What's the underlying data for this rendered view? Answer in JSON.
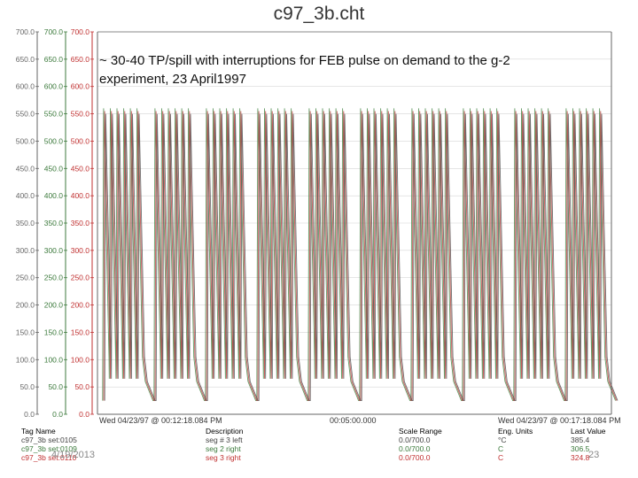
{
  "chart_data": {
    "type": "line",
    "title": "c97_3b.cht",
    "annotation": "~ 30-40 TP/spill with interruptions for FEB pulse on demand to the g-2 experiment, 23 April1997",
    "ylim": [
      0,
      700
    ],
    "y_ticks": [
      "0.0",
      "50.0",
      "100.0",
      "150.0",
      "200.0",
      "250.0",
      "300.0",
      "350.0",
      "400.0",
      "450.0",
      "500.0",
      "550.0",
      "600.0",
      "650.0",
      "700.0"
    ],
    "x_start_label": "Wed 04/23/97 @ 00:12:18.084 PM",
    "x_mid_label": "00:05:00.000",
    "x_end_label": "Wed 04/23/97 @ 00:17:18.084 PM",
    "grid": true,
    "pattern": {
      "groups": 10,
      "pulses_per_group": 6,
      "pulse_peak": 560,
      "baseline": 25,
      "gap_dip": 60
    },
    "series": [
      {
        "name": "seg # 3 left",
        "color": "#4a8a4a",
        "peak": 560
      },
      {
        "name": "seg 2 right",
        "color": "#c04040",
        "peak": 555
      },
      {
        "name": "seg 3 right",
        "color": "#555555",
        "peak": 550
      }
    ]
  },
  "axis_colors": [
    "#666666",
    "#3c7a3c",
    "#c03030"
  ],
  "table": {
    "headers": [
      "Tag Name",
      "Description",
      "Scale Range",
      "Eng. Units",
      "Last Value"
    ],
    "rows": [
      {
        "tag": "c97_3b set:0105",
        "desc": "seg # 3 left",
        "range": "0.0/700.0",
        "units": "°C",
        "last": "385.4",
        "color": "#444444"
      },
      {
        "tag": "c97_3b set:0109",
        "desc": "seg 2 right",
        "range": "0.0/700.0",
        "units": "C",
        "last": "306.5",
        "color": "#3c7a3c"
      },
      {
        "tag": "c97_3b set:0110",
        "desc": "seg 3 right",
        "range": "0.0/700.0",
        "units": "C",
        "last": "324.8",
        "color": "#c03030"
      }
    ]
  },
  "footer": {
    "date": "4/19/2013",
    "page": "23"
  }
}
